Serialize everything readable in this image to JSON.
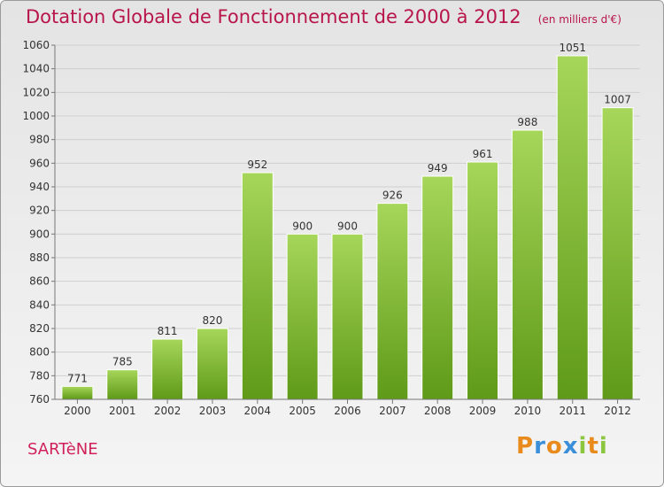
{
  "header": {
    "title": "Dotation Globale de Fonctionnement de 2000 à 2012",
    "subtitle": "(en milliers d'€)"
  },
  "footer": {
    "commune": "SARTèNE",
    "brand": "Proxiti"
  },
  "colors": {
    "title": "#b8154a",
    "bar_light": "#a6d65a",
    "bar_dark": "#5f9a18",
    "grid": "#cfcfcf",
    "brand_letters": [
      "#e98a1c",
      "#3b8ed8",
      "#e98a1c",
      "#3b8ed8",
      "#8cc63f",
      "#e98a1c",
      "#8cc63f"
    ]
  },
  "chart_data": {
    "type": "bar",
    "categories": [
      "2000",
      "2001",
      "2002",
      "2003",
      "2004",
      "2005",
      "2006",
      "2007",
      "2008",
      "2009",
      "2010",
      "2011",
      "2012"
    ],
    "values": [
      771,
      785,
      811,
      820,
      952,
      900,
      900,
      926,
      949,
      961,
      988,
      1051,
      1007
    ],
    "ylim": [
      760,
      1060
    ],
    "yticks": [
      760,
      780,
      800,
      820,
      840,
      860,
      880,
      900,
      920,
      940,
      960,
      980,
      1000,
      1020,
      1040,
      1060
    ],
    "grid": true,
    "data_labels": true
  }
}
